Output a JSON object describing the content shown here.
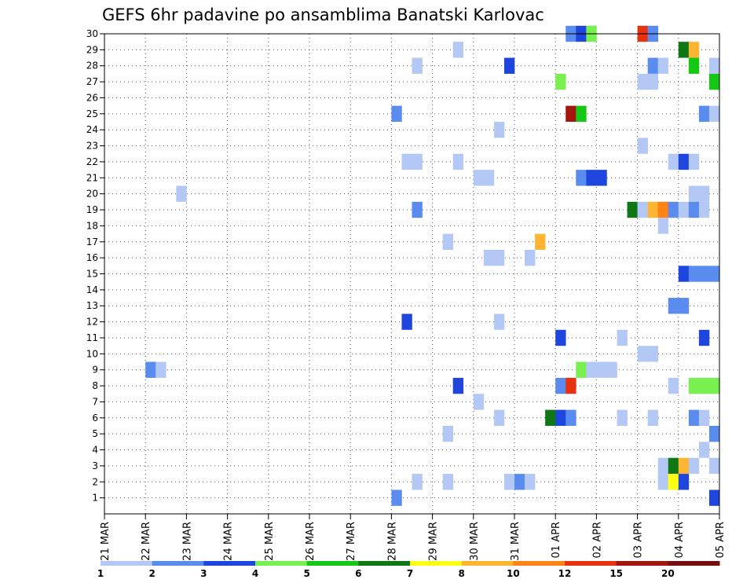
{
  "chart_data": {
    "type": "heatmap",
    "title": "GEFS 6hr padavine po ansamblima Banatski Karlovac",
    "y_members": [
      1,
      2,
      3,
      4,
      5,
      6,
      7,
      8,
      9,
      10,
      11,
      12,
      13,
      14,
      15,
      16,
      17,
      18,
      19,
      20,
      21,
      22,
      23,
      24,
      25,
      26,
      27,
      28,
      29,
      30
    ],
    "ylim": [
      0,
      30
    ],
    "x_day_labels": [
      "21 MAR",
      "22 MAR",
      "23 MAR",
      "24 MAR",
      "25 MAR",
      "26 MAR",
      "27 MAR",
      "28 MAR",
      "29 MAR",
      "30 MAR",
      "31 MAR",
      "01 APR",
      "02 APR",
      "03 APR",
      "04 APR",
      "05 APR"
    ],
    "x_unit": "day index (0 = 21 MAR 00UTC), 6-hour steps of 0.25",
    "grid": true,
    "legend": {
      "position": "bottom",
      "ticks": [
        "1",
        "2",
        "3",
        "4",
        "5",
        "6",
        "7",
        "8",
        "10",
        "12",
        "15",
        "20"
      ],
      "colors": [
        "#b4c8f5",
        "#5a8cf0",
        "#1e46dc",
        "#78f050",
        "#14c814",
        "#0f7814",
        "#ffff14",
        "#ffb432",
        "#ff8214",
        "#e6320f",
        "#a5140f",
        "#780f0f"
      ]
    },
    "cells": [
      {
        "m": 30,
        "t": 11.25,
        "c": "#5a8cf0"
      },
      {
        "m": 30,
        "t": 11.5,
        "c": "#1e46dc"
      },
      {
        "m": 30,
        "t": 11.75,
        "c": "#78f050"
      },
      {
        "m": 30,
        "t": 13.0,
        "c": "#e6320f"
      },
      {
        "m": 30,
        "t": 13.25,
        "c": "#5a8cf0"
      },
      {
        "m": 29,
        "t": 8.5,
        "c": "#b4c8f5"
      },
      {
        "m": 29,
        "t": 14.0,
        "c": "#0f7814"
      },
      {
        "m": 29,
        "t": 14.25,
        "c": "#ffb432"
      },
      {
        "m": 28,
        "t": 7.5,
        "c": "#b4c8f5"
      },
      {
        "m": 28,
        "t": 9.75,
        "c": "#1e46dc"
      },
      {
        "m": 28,
        "t": 13.25,
        "c": "#5a8cf0"
      },
      {
        "m": 28,
        "t": 13.5,
        "c": "#b4c8f5"
      },
      {
        "m": 28,
        "t": 14.25,
        "c": "#14c814"
      },
      {
        "m": 28,
        "t": 14.75,
        "c": "#b4c8f5"
      },
      {
        "m": 27,
        "t": 11.0,
        "c": "#78f050"
      },
      {
        "m": 27,
        "t": 13.0,
        "c": "#b4c8f5"
      },
      {
        "m": 27,
        "t": 13.25,
        "c": "#b4c8f5"
      },
      {
        "m": 27,
        "t": 14.75,
        "c": "#14c814"
      },
      {
        "m": 25,
        "t": 7.0,
        "c": "#5a8cf0"
      },
      {
        "m": 25,
        "t": 11.25,
        "c": "#a5140f"
      },
      {
        "m": 25,
        "t": 11.5,
        "c": "#14c814"
      },
      {
        "m": 25,
        "t": 14.5,
        "c": "#5a8cf0"
      },
      {
        "m": 25,
        "t": 14.75,
        "c": "#b4c8f5"
      },
      {
        "m": 24,
        "t": 9.5,
        "c": "#b4c8f5"
      },
      {
        "m": 23,
        "t": 13.0,
        "c": "#b4c8f5"
      },
      {
        "m": 22,
        "t": 7.25,
        "c": "#b4c8f5"
      },
      {
        "m": 22,
        "t": 7.5,
        "c": "#b4c8f5"
      },
      {
        "m": 22,
        "t": 8.5,
        "c": "#b4c8f5"
      },
      {
        "m": 22,
        "t": 13.75,
        "c": "#b4c8f5"
      },
      {
        "m": 22,
        "t": 14.0,
        "c": "#1e46dc"
      },
      {
        "m": 22,
        "t": 14.25,
        "c": "#b4c8f5"
      },
      {
        "m": 21,
        "t": 9.0,
        "c": "#b4c8f5"
      },
      {
        "m": 21,
        "t": 9.25,
        "c": "#b4c8f5"
      },
      {
        "m": 21,
        "t": 11.5,
        "c": "#5a8cf0"
      },
      {
        "m": 21,
        "t": 11.75,
        "c": "#1e46dc"
      },
      {
        "m": 21,
        "t": 12.0,
        "c": "#1e46dc"
      },
      {
        "m": 20,
        "t": 1.75,
        "c": "#b4c8f5"
      },
      {
        "m": 20,
        "t": 14.25,
        "c": "#b4c8f5"
      },
      {
        "m": 20,
        "t": 14.5,
        "c": "#b4c8f5"
      },
      {
        "m": 19,
        "t": 7.5,
        "c": "#5a8cf0"
      },
      {
        "m": 19,
        "t": 12.75,
        "c": "#0f7814"
      },
      {
        "m": 19,
        "t": 13.0,
        "c": "#b4c8f5"
      },
      {
        "m": 19,
        "t": 13.25,
        "c": "#ffb432"
      },
      {
        "m": 19,
        "t": 13.5,
        "c": "#ff8214"
      },
      {
        "m": 19,
        "t": 13.75,
        "c": "#5a8cf0"
      },
      {
        "m": 19,
        "t": 14.0,
        "c": "#b4c8f5"
      },
      {
        "m": 19,
        "t": 14.25,
        "c": "#5a8cf0"
      },
      {
        "m": 19,
        "t": 14.5,
        "c": "#b4c8f5"
      },
      {
        "m": 18,
        "t": 13.5,
        "c": "#b4c8f5"
      },
      {
        "m": 17,
        "t": 8.25,
        "c": "#b4c8f5"
      },
      {
        "m": 17,
        "t": 10.5,
        "c": "#ffb432"
      },
      {
        "m": 16,
        "t": 9.25,
        "c": "#b4c8f5"
      },
      {
        "m": 16,
        "t": 9.5,
        "c": "#b4c8f5"
      },
      {
        "m": 16,
        "t": 10.25,
        "c": "#b4c8f5"
      },
      {
        "m": 15,
        "t": 14.0,
        "c": "#1e46dc"
      },
      {
        "m": 15,
        "t": 14.25,
        "c": "#5a8cf0"
      },
      {
        "m": 15,
        "t": 14.5,
        "c": "#5a8cf0"
      },
      {
        "m": 15,
        "t": 14.75,
        "c": "#5a8cf0"
      },
      {
        "m": 13,
        "t": 13.75,
        "c": "#5a8cf0"
      },
      {
        "m": 13,
        "t": 14.0,
        "c": "#5a8cf0"
      },
      {
        "m": 12,
        "t": 7.25,
        "c": "#1e46dc"
      },
      {
        "m": 12,
        "t": 9.5,
        "c": "#b4c8f5"
      },
      {
        "m": 11,
        "t": 11.0,
        "c": "#1e46dc"
      },
      {
        "m": 11,
        "t": 12.5,
        "c": "#b4c8f5"
      },
      {
        "m": 11,
        "t": 14.5,
        "c": "#1e46dc"
      },
      {
        "m": 10,
        "t": 13.0,
        "c": "#b4c8f5"
      },
      {
        "m": 10,
        "t": 13.25,
        "c": "#b4c8f5"
      },
      {
        "m": 9,
        "t": 1.0,
        "c": "#5a8cf0"
      },
      {
        "m": 9,
        "t": 1.25,
        "c": "#b4c8f5"
      },
      {
        "m": 9,
        "t": 11.5,
        "c": "#78f050"
      },
      {
        "m": 9,
        "t": 11.75,
        "c": "#b4c8f5"
      },
      {
        "m": 9,
        "t": 12.0,
        "c": "#b4c8f5"
      },
      {
        "m": 9,
        "t": 12.25,
        "c": "#b4c8f5"
      },
      {
        "m": 8,
        "t": 8.5,
        "c": "#1e46dc"
      },
      {
        "m": 8,
        "t": 11.0,
        "c": "#5a8cf0"
      },
      {
        "m": 8,
        "t": 11.25,
        "c": "#e6320f"
      },
      {
        "m": 8,
        "t": 13.75,
        "c": "#b4c8f5"
      },
      {
        "m": 8,
        "t": 14.25,
        "c": "#78f050"
      },
      {
        "m": 8,
        "t": 14.5,
        "c": "#78f050"
      },
      {
        "m": 8,
        "t": 14.75,
        "c": "#78f050"
      },
      {
        "m": 7,
        "t": 9.0,
        "c": "#b4c8f5"
      },
      {
        "m": 6,
        "t": 9.5,
        "c": "#b4c8f5"
      },
      {
        "m": 6,
        "t": 10.75,
        "c": "#0f7814"
      },
      {
        "m": 6,
        "t": 11.0,
        "c": "#1e46dc"
      },
      {
        "m": 6,
        "t": 11.25,
        "c": "#5a8cf0"
      },
      {
        "m": 6,
        "t": 12.5,
        "c": "#b4c8f5"
      },
      {
        "m": 6,
        "t": 13.25,
        "c": "#b4c8f5"
      },
      {
        "m": 6,
        "t": 14.25,
        "c": "#5a8cf0"
      },
      {
        "m": 6,
        "t": 14.5,
        "c": "#b4c8f5"
      },
      {
        "m": 5,
        "t": 8.25,
        "c": "#b4c8f5"
      },
      {
        "m": 5,
        "t": 14.75,
        "c": "#5a8cf0"
      },
      {
        "m": 4,
        "t": 14.5,
        "c": "#b4c8f5"
      },
      {
        "m": 3,
        "t": 13.5,
        "c": "#b4c8f5"
      },
      {
        "m": 3,
        "t": 13.75,
        "c": "#0f7814"
      },
      {
        "m": 3,
        "t": 14.0,
        "c": "#ffb432"
      },
      {
        "m": 3,
        "t": 14.25,
        "c": "#b4c8f5"
      },
      {
        "m": 3,
        "t": 14.75,
        "c": "#b4c8f5"
      },
      {
        "m": 2,
        "t": 7.5,
        "c": "#b4c8f5"
      },
      {
        "m": 2,
        "t": 8.25,
        "c": "#b4c8f5"
      },
      {
        "m": 2,
        "t": 9.75,
        "c": "#b4c8f5"
      },
      {
        "m": 2,
        "t": 10.0,
        "c": "#5a8cf0"
      },
      {
        "m": 2,
        "t": 10.25,
        "c": "#b4c8f5"
      },
      {
        "m": 2,
        "t": 13.5,
        "c": "#b4c8f5"
      },
      {
        "m": 2,
        "t": 13.75,
        "c": "#ffff14"
      },
      {
        "m": 2,
        "t": 14.0,
        "c": "#1e46dc"
      },
      {
        "m": 1,
        "t": 7.0,
        "c": "#5a8cf0"
      },
      {
        "m": 1,
        "t": 14.75,
        "c": "#1e46dc"
      }
    ]
  }
}
